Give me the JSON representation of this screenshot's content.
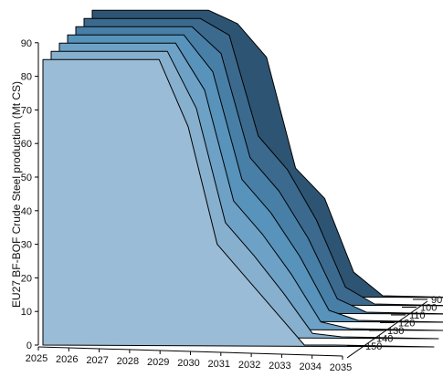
{
  "chart_data": {
    "type": "area",
    "title": "",
    "ylabel": "EU27 BF-BOF Crude Steel production (Mt CS)",
    "xlabel": "",
    "ylim": [
      0,
      90
    ],
    "y_ticks": [
      "0",
      "10",
      "20",
      "30",
      "40",
      "50",
      "60",
      "70",
      "80",
      "90"
    ],
    "x": [
      2025,
      2026,
      2027,
      2028,
      2029,
      2030,
      2031,
      2032,
      2033,
      2034,
      2035
    ],
    "x_tick_labels": [
      "2025",
      "2026",
      "2027",
      "2028",
      "2029",
      "2030",
      "2031",
      "2032",
      "2033",
      "2034",
      "2035"
    ],
    "depth_axis_labels": [
      "150",
      "140",
      "130",
      "120",
      "110",
      "100",
      "90"
    ],
    "series": [
      {
        "values": [
          85,
          85,
          85,
          85,
          85,
          65,
          30,
          20,
          10,
          0,
          0
        ]
      },
      {
        "values": [
          85,
          85,
          85,
          85,
          85,
          68,
          34,
          24,
          13,
          1,
          0
        ]
      },
      {
        "values": [
          85,
          85,
          85,
          85,
          85,
          71,
          38,
          28,
          16,
          2,
          0
        ]
      },
      {
        "values": [
          85,
          85,
          85,
          85,
          85,
          74,
          42,
          32,
          19,
          3,
          0
        ]
      },
      {
        "values": [
          85,
          85,
          85,
          85,
          85,
          77,
          46,
          36,
          22,
          4,
          0
        ]
      },
      {
        "values": [
          85,
          85,
          85,
          85,
          85,
          80,
          50,
          40,
          25,
          5,
          0
        ]
      },
      {
        "values": [
          85,
          85,
          85,
          85,
          85,
          81,
          71,
          38,
          29,
          7,
          0
        ]
      }
    ],
    "colors": [
      "#9bbcd6",
      "#87b0cf",
      "#6da1c6",
      "#5793bb",
      "#477fa7",
      "#3b6a8e",
      "#2e5473",
      "#223f58"
    ],
    "grid": false,
    "legend": "none"
  }
}
